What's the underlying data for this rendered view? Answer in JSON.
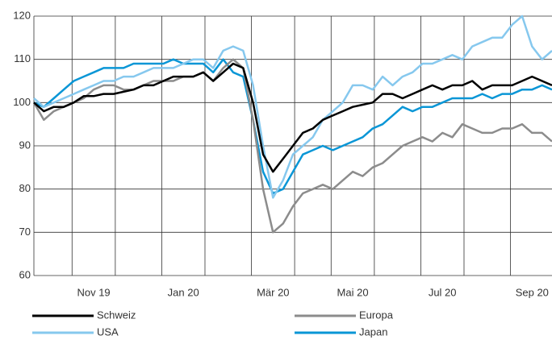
{
  "chart_data": {
    "type": "line",
    "categories": [
      null,
      null,
      null,
      null,
      null,
      null,
      "Nov 19",
      null,
      null,
      null,
      null,
      null,
      null,
      null,
      null,
      "Jan 20",
      null,
      null,
      null,
      null,
      null,
      null,
      null,
      null,
      "Mär 20",
      null,
      null,
      null,
      null,
      null,
      null,
      null,
      "Mai 20",
      null,
      null,
      null,
      null,
      null,
      null,
      null,
      null,
      "Jul 20",
      null,
      null,
      null,
      null,
      null,
      null,
      null,
      null,
      "Sep 20",
      null,
      null
    ],
    "series": [
      {
        "name": "Schweiz",
        "color": "#000000",
        "values": [
          100,
          98,
          99,
          99,
          100,
          101.5,
          101.5,
          102,
          102,
          102.5,
          103,
          104,
          104,
          105,
          106,
          106,
          106,
          107,
          105,
          107,
          109,
          108,
          100,
          88,
          84,
          87,
          90,
          93,
          94,
          96,
          97,
          98,
          99,
          99.5,
          100,
          102,
          102,
          101,
          102,
          103,
          104,
          103,
          104,
          104,
          105,
          103,
          104,
          104,
          104,
          105,
          106,
          105,
          104
        ]
      },
      {
        "name": "Europa",
        "color": "#8c8c8c",
        "values": [
          100,
          96,
          98,
          99,
          100,
          101,
          103,
          104,
          104,
          103,
          103,
          104,
          105,
          105,
          105,
          106,
          106,
          107,
          105,
          108,
          110,
          108,
          96,
          80,
          70,
          72,
          76,
          79,
          80,
          81,
          80,
          82,
          84,
          83,
          85,
          86,
          88,
          90,
          91,
          92,
          91,
          93,
          92,
          95,
          94,
          93,
          93,
          94,
          94,
          95,
          93,
          93,
          91
        ]
      },
      {
        "name": "USA",
        "color": "#86c8ee",
        "values": [
          101,
          99,
          100,
          101,
          102,
          103,
          104,
          105,
          105,
          106,
          106,
          107,
          108,
          108,
          108,
          109,
          110,
          110,
          108,
          112,
          113,
          112,
          104,
          90,
          78,
          82,
          88,
          90,
          92,
          96,
          98,
          100,
          104,
          104,
          103,
          106,
          104,
          106,
          107,
          109,
          109,
          110,
          111,
          110,
          113,
          114,
          115,
          115,
          118,
          120,
          113,
          110,
          112
        ]
      },
      {
        "name": "Japan",
        "color": "#0a96d6",
        "values": [
          100,
          99,
          101,
          103,
          105,
          106,
          107,
          108,
          108,
          108,
          109,
          109,
          109,
          109,
          110,
          109,
          109,
          109,
          107,
          110,
          107,
          106,
          96,
          84,
          79,
          80,
          84,
          88,
          89,
          90,
          89,
          90,
          91,
          92,
          94,
          95,
          97,
          99,
          98,
          99,
          99,
          100,
          101,
          101,
          101,
          102,
          101,
          102,
          102,
          103,
          103,
          104,
          103
        ]
      }
    ],
    "ylim": [
      60,
      120
    ],
    "yticks": [
      60,
      70,
      80,
      90,
      100,
      110,
      120
    ],
    "grid": true
  }
}
